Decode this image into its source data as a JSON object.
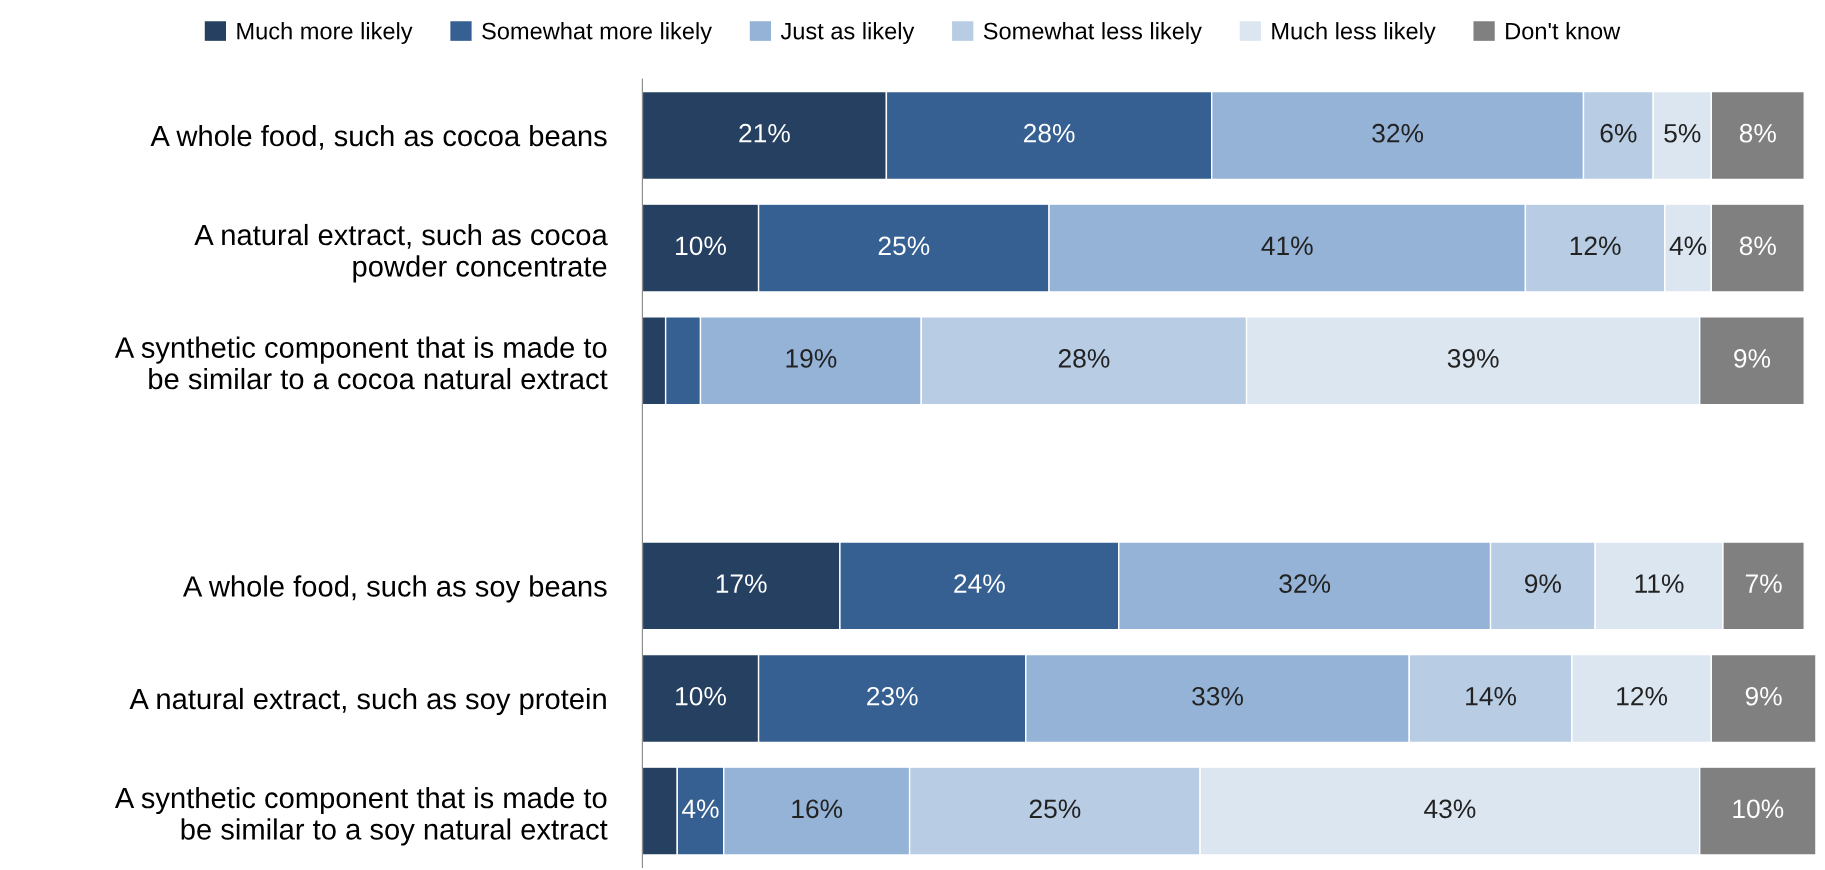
{
  "chart_data": {
    "type": "bar",
    "orientation": "horizontal",
    "stacked": true,
    "legend": "top",
    "grid": false,
    "tick_labels": "y",
    "categories": [
      "A whole food, such as cocoa beans",
      "A natural extract, such as cocoa\npowder concentrate",
      "A synthetic component that is made to\nbe similar to a cocoa natural extract",
      null,
      "A whole food, such as soy beans",
      "A natural extract, such as soy protein",
      "A synthetic component that is made to\nbe similar to a soy natural extract"
    ],
    "series": [
      {
        "name": "Much more likely",
        "color": "#264061",
        "values": [
          21,
          10,
          2,
          null,
          17,
          10,
          3
        ],
        "value_labels": [
          "21%",
          "10%",
          null,
          null,
          "17%",
          "10%",
          null
        ]
      },
      {
        "name": "Somewhat more likely",
        "color": "#366092",
        "values": [
          28,
          25,
          3,
          null,
          24,
          23,
          4
        ],
        "value_labels": [
          "28%",
          "25%",
          null,
          null,
          "24%",
          "23%",
          "4%"
        ]
      },
      {
        "name": "Just as likely",
        "color": "#95b3d7",
        "values": [
          32,
          41,
          19,
          null,
          32,
          33,
          16
        ],
        "value_labels": [
          "32%",
          "41%",
          "19%",
          null,
          "32%",
          "33%",
          "16%"
        ]
      },
      {
        "name": "Somewhat less likely",
        "color": "#b8cce4",
        "values": [
          6,
          12,
          28,
          null,
          9,
          14,
          25
        ],
        "value_labels": [
          "6%",
          "12%",
          "28%",
          null,
          "9%",
          "14%",
          "25%"
        ]
      },
      {
        "name": "Much less likely",
        "color": "#dce6f1",
        "values": [
          5,
          4,
          39,
          null,
          11,
          12,
          43
        ],
        "value_labels": [
          "5%",
          "4%",
          "39%",
          null,
          "11%",
          "12%",
          "43%"
        ]
      },
      {
        "name": "Don't know",
        "color": "#808080",
        "values": [
          8,
          8,
          9,
          null,
          7,
          9,
          10
        ],
        "value_labels": [
          "8%",
          "8%",
          "9%",
          null,
          "7%",
          "9%",
          "10%"
        ]
      }
    ]
  }
}
